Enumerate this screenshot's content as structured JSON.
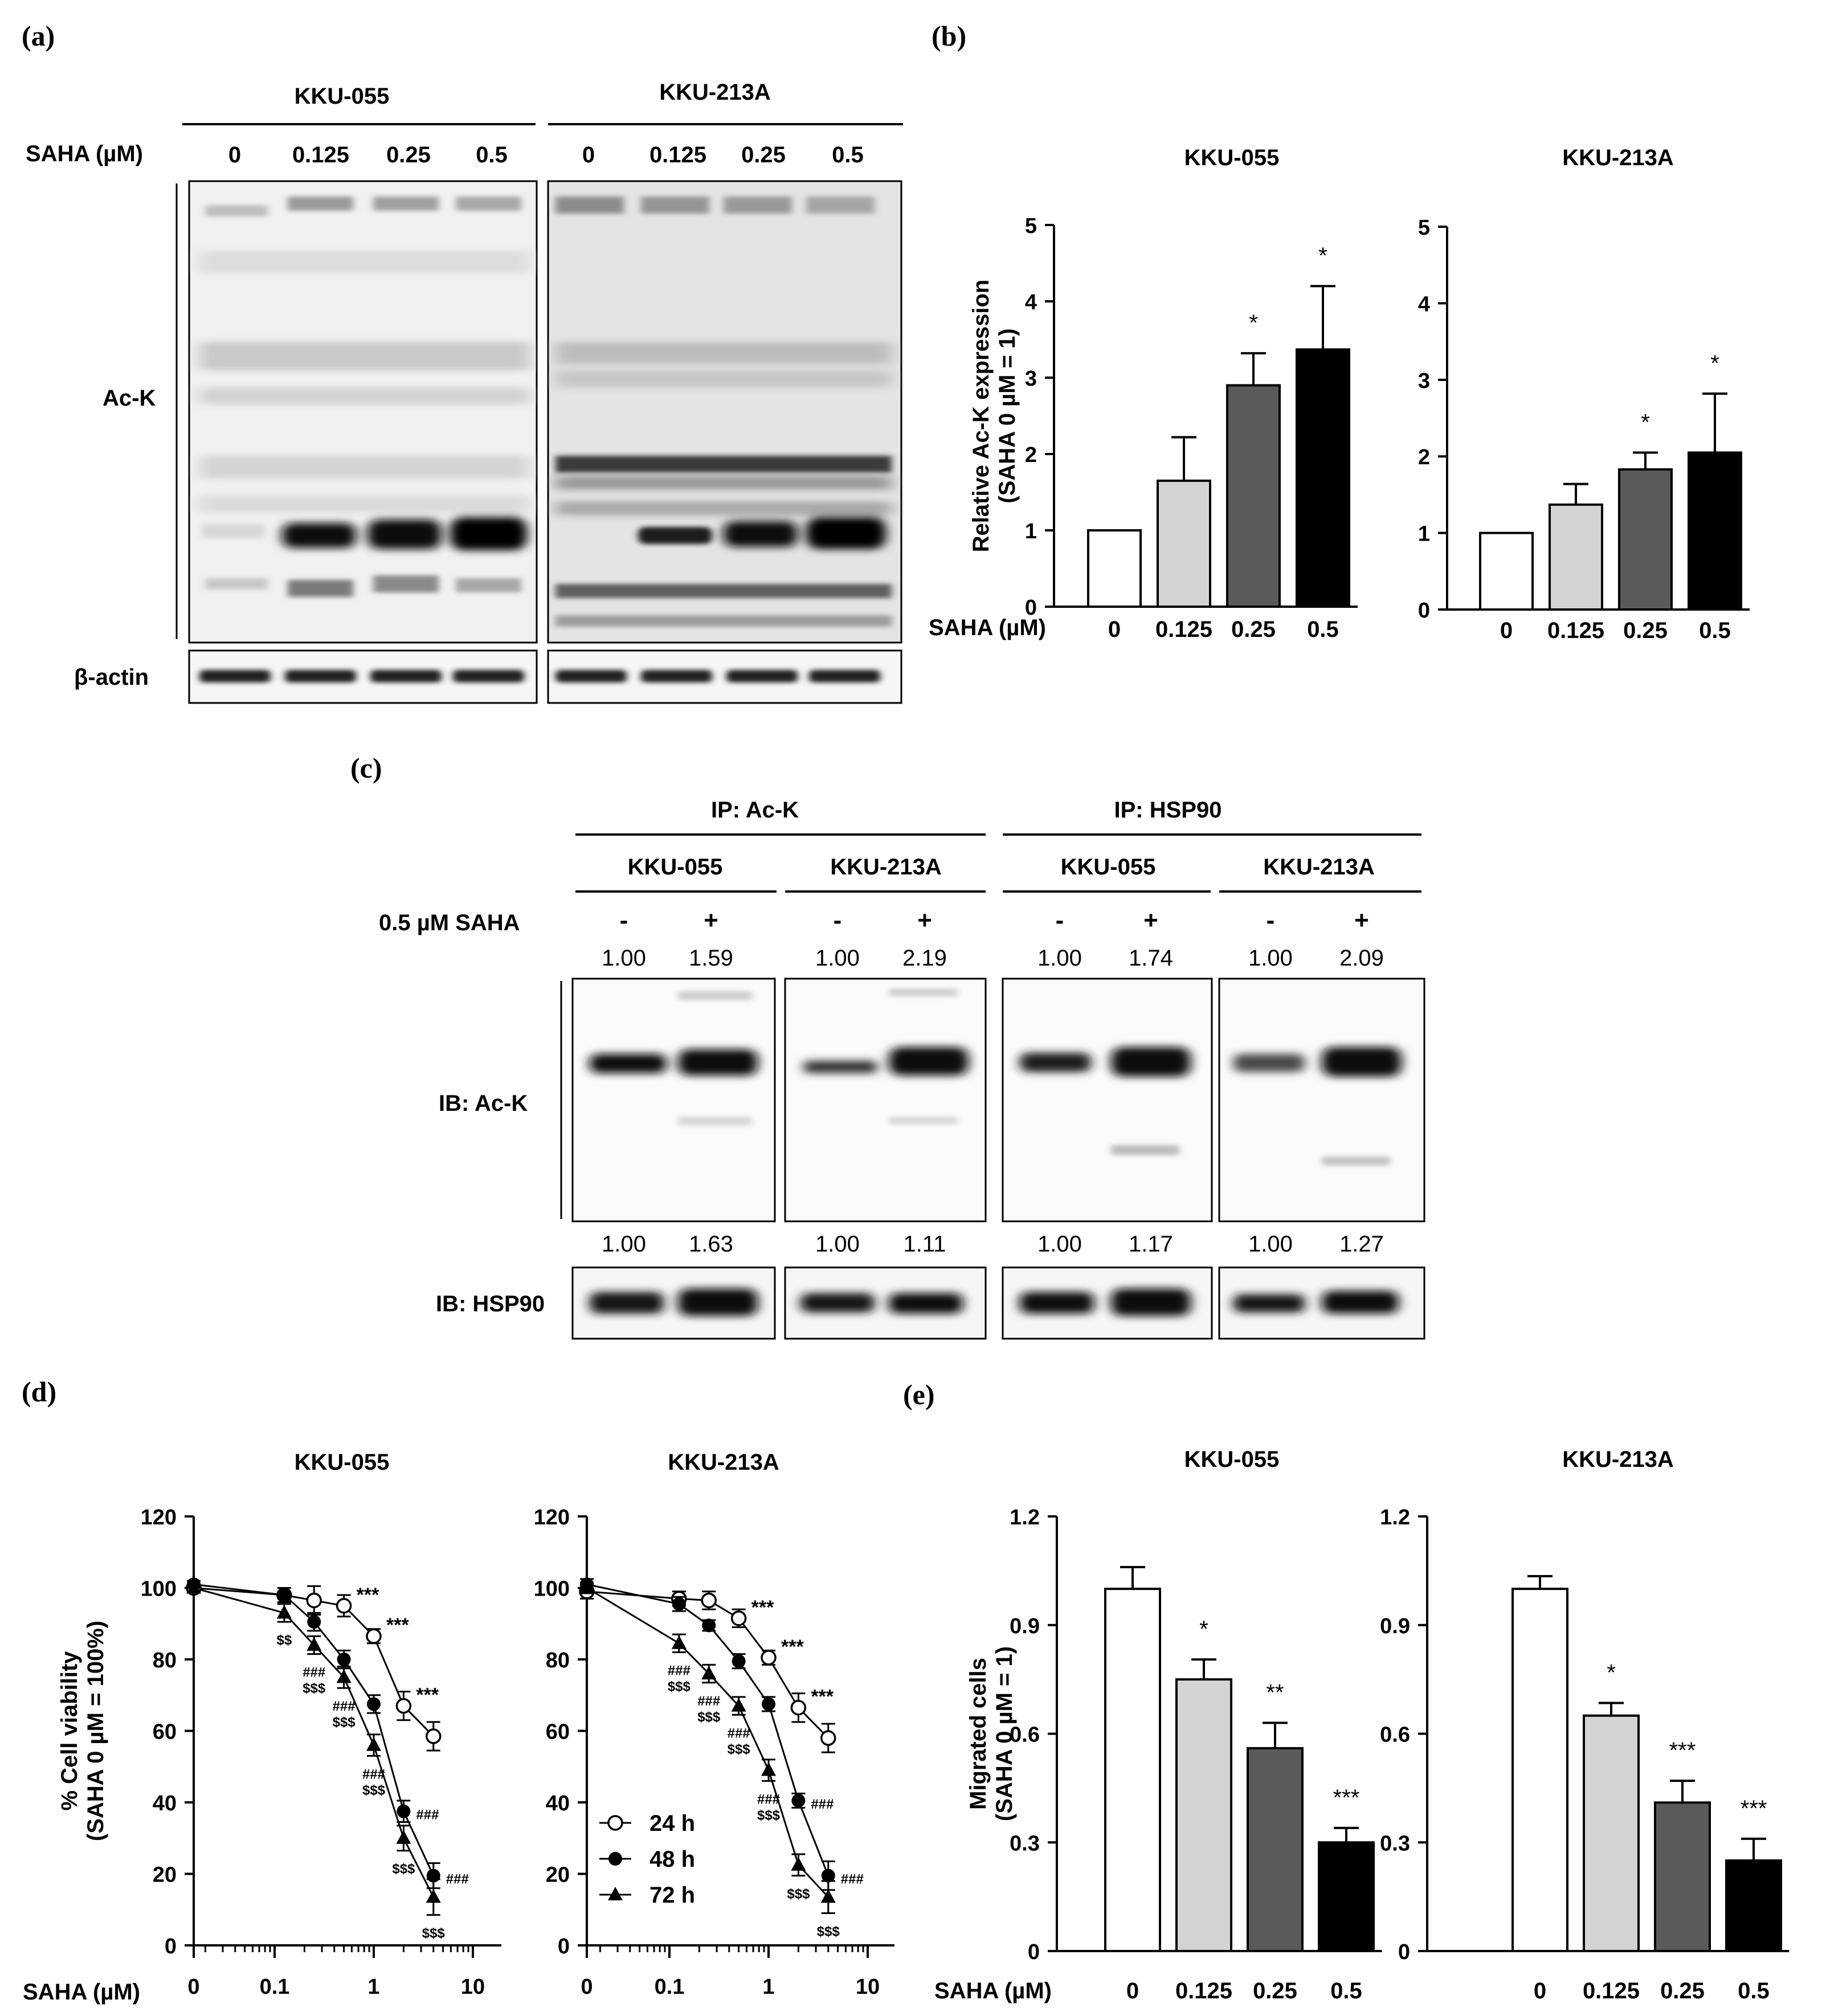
{
  "panels": {
    "a": "(a)",
    "b": "(b)",
    "c": "(c)",
    "d": "(d)",
    "e": "(e)"
  },
  "blot_a": {
    "cell_lines": [
      "KKU-055",
      "KKU-213A"
    ],
    "treatment_label": "SAHA (µM)",
    "doses": [
      "0",
      "0.125",
      "0.25",
      "0.5"
    ],
    "row_labels": {
      "ack": "Ac-K",
      "actin": "β-actin"
    }
  },
  "blot_c": {
    "ip_labels": [
      "IP: Ac-K",
      "IP: HSP90"
    ],
    "cell_lines": [
      "KKU-055",
      "KKU-213A",
      "KKU-055",
      "KKU-213A"
    ],
    "treatment_label": "0.5 µM SAHA",
    "signs": [
      "-",
      "+"
    ],
    "ack_ratios": [
      [
        "1.00",
        "1.59"
      ],
      [
        "1.00",
        "2.19"
      ],
      [
        "1.00",
        "1.74"
      ],
      [
        "1.00",
        "2.09"
      ]
    ],
    "hsp90_ratios": [
      [
        "1.00",
        "1.63"
      ],
      [
        "1.00",
        "1.11"
      ],
      [
        "1.00",
        "1.17"
      ],
      [
        "1.00",
        "1.27"
      ]
    ],
    "row_labels": {
      "ack": "IB: Ac-K",
      "hsp90": "IB: HSP90"
    }
  },
  "chart_data": [
    {
      "id": "b-left",
      "type": "bar",
      "title": "KKU-055",
      "ylabel": "Relative Ac-K expression (SAHA 0 µM = 1)",
      "xlabel": "SAHA (µM)",
      "categories": [
        "0",
        "0.125",
        "0.25",
        "0.5"
      ],
      "values": [
        1.0,
        1.65,
        2.9,
        3.37
      ],
      "errors": [
        0,
        0.57,
        0.42,
        0.83
      ],
      "significance": [
        "",
        "",
        "*",
        "*"
      ],
      "colors": [
        "#ffffff",
        "#d4d4d4",
        "#5a5a5a",
        "#000000"
      ],
      "ylim": [
        0,
        5
      ],
      "yticks": [
        "0",
        "1",
        "2",
        "3",
        "4",
        "5"
      ]
    },
    {
      "id": "b-right",
      "type": "bar",
      "title": "KKU-213A",
      "ylabel": "",
      "xlabel": "",
      "categories": [
        "0",
        "0.125",
        "0.25",
        "0.5"
      ],
      "values": [
        1.0,
        1.37,
        1.83,
        2.05
      ],
      "errors": [
        0,
        0.27,
        0.22,
        0.77
      ],
      "significance": [
        "",
        "",
        "*",
        "*"
      ],
      "colors": [
        "#ffffff",
        "#d4d4d4",
        "#5a5a5a",
        "#000000"
      ],
      "ylim": [
        0,
        5
      ],
      "yticks": [
        "0",
        "1",
        "2",
        "3",
        "4",
        "5"
      ]
    },
    {
      "id": "d-left",
      "type": "line",
      "title": "KKU-055",
      "ylabel": "% Cell viability (SAHA 0 µM = 100%)",
      "xlabel": "SAHA (µM)",
      "xscale": "log",
      "ylim": [
        0,
        120
      ],
      "yticks": [
        "0",
        "20",
        "40",
        "60",
        "80",
        "100",
        "120"
      ],
      "xticks": [
        "0",
        "0.1",
        "1",
        "10"
      ],
      "x": [
        0,
        0.125,
        0.25,
        0.5,
        1,
        2,
        4
      ],
      "series": [
        {
          "name": "24 h",
          "marker": "open-circle",
          "values": [
            100,
            98,
            96.5,
            95,
            86.5,
            67,
            58.5
          ],
          "errors": [
            1,
            2,
            4,
            3,
            2,
            4,
            4
          ],
          "labels": [
            "",
            "",
            "",
            "***",
            "***",
            "***",
            ""
          ]
        },
        {
          "name": "48 h",
          "marker": "filled-circle",
          "values": [
            101,
            98,
            90.5,
            80,
            67.5,
            37.5,
            19.5
          ],
          "errors": [
            1,
            2,
            2.5,
            2.5,
            2.5,
            3,
            3.5
          ],
          "labels": [
            "",
            "",
            "",
            "",
            "",
            "###",
            "###"
          ]
        },
        {
          "name": "72 h",
          "marker": "filled-triangle",
          "values": [
            100,
            93,
            84,
            75,
            56,
            30,
            13.5
          ],
          "errors": [
            1,
            2.5,
            2.5,
            3,
            3,
            3.5,
            5
          ],
          "labels": [
            "",
            "$$",
            "###\n$$$",
            "###\n$$$",
            "###\n$$$",
            "$$$",
            "$$$"
          ]
        }
      ]
    },
    {
      "id": "d-right",
      "type": "line",
      "title": "KKU-213A",
      "ylabel": "",
      "xlabel": "",
      "xscale": "log",
      "ylim": [
        0,
        120
      ],
      "yticks": [
        "0",
        "20",
        "40",
        "60",
        "80",
        "100",
        "120"
      ],
      "xticks": [
        "0",
        "0.1",
        "1",
        "10"
      ],
      "x": [
        0,
        0.125,
        0.25,
        0.5,
        1,
        2,
        4
      ],
      "series": [
        {
          "name": "24 h",
          "marker": "open-circle",
          "values": [
            99,
            97,
            96.5,
            91.5,
            80.5,
            66.5,
            58
          ],
          "errors": [
            2,
            2,
            2.5,
            2.5,
            2,
            4,
            4
          ],
          "labels": [
            "",
            "",
            "",
            "***",
            "***",
            "***",
            ""
          ]
        },
        {
          "name": "48 h",
          "marker": "filled-circle",
          "values": [
            101,
            95.5,
            89.5,
            79.5,
            67.5,
            40.5,
            19.5
          ],
          "errors": [
            1.5,
            2,
            1.5,
            2,
            2,
            2,
            4
          ],
          "labels": [
            "",
            "",
            "",
            "",
            "",
            "###",
            "###"
          ]
        },
        {
          "name": "72 h",
          "marker": "filled-triangle",
          "values": [
            100,
            84.5,
            76,
            67,
            49,
            22.5,
            13.5
          ],
          "errors": [
            1.5,
            2.5,
            2.5,
            2.5,
            3,
            3,
            4.5
          ],
          "labels": [
            "",
            "###\n$$$",
            "###\n$$$",
            "###\n$$$",
            "###\n$$$",
            "$$$",
            "$$$"
          ]
        }
      ],
      "legend_position": "bottom-left"
    },
    {
      "id": "e-left",
      "type": "bar",
      "title": "KKU-055",
      "ylabel": "Migrated cells (SAHA 0 µM = 1)",
      "xlabel": "SAHA (µM)",
      "categories": [
        "0",
        "0.125",
        "0.25",
        "0.5"
      ],
      "values": [
        1.0,
        0.75,
        0.56,
        0.3
      ],
      "errors": [
        0.06,
        0.055,
        0.07,
        0.04
      ],
      "significance": [
        "",
        "*",
        "**",
        "***"
      ],
      "colors": [
        "#ffffff",
        "#d4d4d4",
        "#5a5a5a",
        "#000000"
      ],
      "ylim": [
        0,
        1.2
      ],
      "yticks": [
        "0",
        "0.3",
        "0.6",
        "0.9",
        "1.2"
      ]
    },
    {
      "id": "e-right",
      "type": "bar",
      "title": "KKU-213A",
      "ylabel": "",
      "xlabel": "",
      "categories": [
        "0",
        "0.125",
        "0.25",
        "0.5"
      ],
      "values": [
        1.0,
        0.65,
        0.41,
        0.25
      ],
      "errors": [
        0.035,
        0.035,
        0.06,
        0.06
      ],
      "significance": [
        "",
        "*",
        "***",
        "***"
      ],
      "colors": [
        "#ffffff",
        "#d4d4d4",
        "#5a5a5a",
        "#000000"
      ],
      "ylim": [
        0,
        1.2
      ],
      "yticks": [
        "0",
        "0.3",
        "0.6",
        "0.9",
        "1.2"
      ]
    }
  ]
}
